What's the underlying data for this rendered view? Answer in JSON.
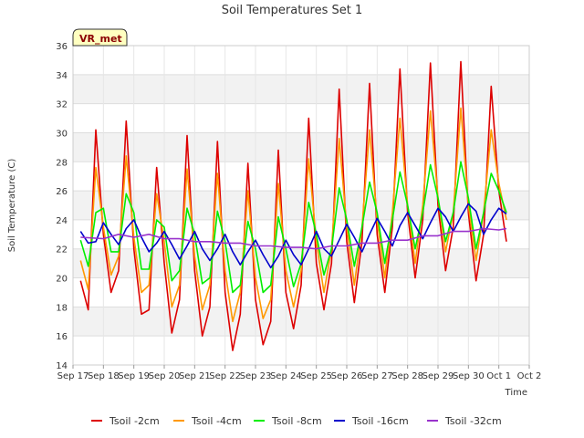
{
  "chart_data": {
    "type": "line",
    "title": "Soil Temperatures Set 1",
    "xlabel": "Time",
    "ylabel": "Soil Temperature (C)",
    "badge": "VR_met",
    "ylim": [
      14,
      36
    ],
    "xlim": [
      "2015-09-17",
      "2015-10-02"
    ],
    "x_ticks": [
      "Sep 17",
      "Sep 18",
      "Sep 19",
      "Sep 20",
      "Sep 21",
      "Sep 22",
      "Sep 23",
      "Sep 24",
      "Sep 25",
      "Sep 26",
      "Sep 27",
      "Sep 28",
      "Sep 29",
      "Sep 30",
      "Oct 1",
      "Oct 2"
    ],
    "y_ticks": [
      14,
      16,
      18,
      20,
      22,
      24,
      26,
      28,
      30,
      32,
      34,
      36
    ],
    "grid": true,
    "legend_position": "bottom",
    "series": [
      {
        "name": "Tsoil -2cm",
        "color": "#dd0000",
        "x": [
          "Sep 17 06:00",
          "Sep 17 12:00",
          "Sep 17 18:00",
          "Sep 18 00:00",
          "Sep 18 06:00",
          "Sep 18 12:00",
          "Sep 18 18:00",
          "Sep 19 00:00",
          "Sep 19 06:00",
          "Sep 19 12:00",
          "Sep 19 18:00",
          "Sep 20 00:00",
          "Sep 20 06:00",
          "Sep 20 12:00",
          "Sep 20 18:00",
          "Sep 21 00:00",
          "Sep 21 06:00",
          "Sep 21 12:00",
          "Sep 21 18:00",
          "Sep 22 00:00",
          "Sep 22 06:00",
          "Sep 22 12:00",
          "Sep 22 18:00",
          "Sep 23 00:00",
          "Sep 23 06:00",
          "Sep 23 12:00",
          "Sep 23 18:00",
          "Sep 24 00:00",
          "Sep 24 06:00",
          "Sep 24 12:00",
          "Sep 24 18:00",
          "Sep 25 00:00",
          "Sep 25 06:00",
          "Sep 25 12:00",
          "Sep 25 18:00",
          "Sep 26 00:00",
          "Sep 26 06:00",
          "Sep 26 12:00",
          "Sep 26 18:00",
          "Sep 27 00:00",
          "Sep 27 06:00",
          "Sep 27 12:00",
          "Sep 27 18:00",
          "Sep 28 00:00",
          "Sep 28 06:00",
          "Sep 28 12:00",
          "Sep 28 18:00",
          "Sep 29 00:00",
          "Sep 29 06:00",
          "Sep 29 12:00",
          "Sep 29 18:00",
          "Sep 30 00:00",
          "Sep 30 06:00",
          "Sep 30 12:00",
          "Sep 30 18:00",
          "Oct 1 00:00",
          "Oct 1 06:00"
        ],
        "values": [
          19.8,
          17.8,
          30.2,
          23.0,
          19.0,
          20.5,
          30.8,
          22.0,
          17.5,
          17.8,
          27.6,
          21.0,
          16.2,
          18.5,
          29.8,
          20.5,
          16.0,
          18.0,
          29.4,
          19.0,
          15.0,
          17.5,
          27.9,
          18.5,
          15.4,
          17.0,
          28.8,
          19.0,
          16.5,
          19.5,
          31.0,
          21.0,
          17.8,
          21.0,
          33.0,
          22.5,
          18.3,
          22.5,
          33.4,
          23.0,
          19.0,
          23.5,
          34.4,
          24.5,
          20.0,
          24.0,
          34.8,
          25.0,
          20.5,
          23.5,
          34.9,
          24.5,
          19.8,
          23.0,
          33.2,
          26.0,
          22.5
        ]
      },
      {
        "name": "Tsoil -4cm",
        "color": "#ff9900",
        "x": [
          "Sep 17 06:00",
          "Sep 17 12:00",
          "Sep 17 18:00",
          "Sep 18 00:00",
          "Sep 18 06:00",
          "Sep 18 12:00",
          "Sep 18 18:00",
          "Sep 19 00:00",
          "Sep 19 06:00",
          "Sep 19 12:00",
          "Sep 19 18:00",
          "Sep 20 00:00",
          "Sep 20 06:00",
          "Sep 20 12:00",
          "Sep 20 18:00",
          "Sep 21 00:00",
          "Sep 21 06:00",
          "Sep 21 12:00",
          "Sep 21 18:00",
          "Sep 22 00:00",
          "Sep 22 06:00",
          "Sep 22 12:00",
          "Sep 22 18:00",
          "Sep 23 00:00",
          "Sep 23 06:00",
          "Sep 23 12:00",
          "Sep 23 18:00",
          "Sep 24 00:00",
          "Sep 24 06:00",
          "Sep 24 12:00",
          "Sep 24 18:00",
          "Sep 25 00:00",
          "Sep 25 06:00",
          "Sep 25 12:00",
          "Sep 25 18:00",
          "Sep 26 00:00",
          "Sep 26 06:00",
          "Sep 26 12:00",
          "Sep 26 18:00",
          "Sep 27 00:00",
          "Sep 27 06:00",
          "Sep 27 12:00",
          "Sep 27 18:00",
          "Sep 28 00:00",
          "Sep 28 06:00",
          "Sep 28 12:00",
          "Sep 28 18:00",
          "Sep 29 00:00",
          "Sep 29 06:00",
          "Sep 29 12:00",
          "Sep 29 18:00",
          "Sep 30 00:00",
          "Sep 30 06:00",
          "Sep 30 12:00",
          "Sep 30 18:00",
          "Oct 1 00:00",
          "Oct 1 06:00"
        ],
        "values": [
          21.2,
          19.2,
          27.6,
          23.5,
          20.2,
          21.5,
          28.4,
          22.8,
          19.0,
          19.5,
          25.8,
          22.5,
          18.0,
          19.5,
          27.5,
          21.5,
          17.8,
          19.5,
          27.2,
          20.5,
          17.0,
          19.0,
          26.0,
          20.0,
          17.2,
          18.5,
          26.5,
          20.5,
          18.0,
          20.5,
          28.2,
          22.5,
          19.0,
          22.0,
          29.6,
          23.5,
          19.5,
          23.5,
          30.2,
          24.0,
          20.0,
          24.5,
          31.0,
          25.0,
          21.0,
          25.0,
          31.5,
          25.5,
          21.8,
          24.5,
          31.7,
          25.0,
          21.2,
          24.5,
          30.2,
          26.5,
          24.0
        ]
      },
      {
        "name": "Tsoil -8cm",
        "color": "#00ee00",
        "x": [
          "Sep 17 06:00",
          "Sep 17 12:00",
          "Sep 17 18:00",
          "Sep 18 00:00",
          "Sep 18 06:00",
          "Sep 18 12:00",
          "Sep 18 18:00",
          "Sep 19 00:00",
          "Sep 19 06:00",
          "Sep 19 12:00",
          "Sep 19 18:00",
          "Sep 20 00:00",
          "Sep 20 06:00",
          "Sep 20 12:00",
          "Sep 20 18:00",
          "Sep 21 00:00",
          "Sep 21 06:00",
          "Sep 21 12:00",
          "Sep 21 18:00",
          "Sep 22 00:00",
          "Sep 22 06:00",
          "Sep 22 12:00",
          "Sep 22 18:00",
          "Sep 23 00:00",
          "Sep 23 06:00",
          "Sep 23 12:00",
          "Sep 23 18:00",
          "Sep 24 00:00",
          "Sep 24 06:00",
          "Sep 24 12:00",
          "Sep 24 18:00",
          "Sep 25 00:00",
          "Sep 25 06:00",
          "Sep 25 12:00",
          "Sep 25 18:00",
          "Sep 26 00:00",
          "Sep 26 06:00",
          "Sep 26 12:00",
          "Sep 26 18:00",
          "Sep 27 00:00",
          "Sep 27 06:00",
          "Sep 27 12:00",
          "Sep 27 18:00",
          "Sep 28 00:00",
          "Sep 28 06:00",
          "Sep 28 12:00",
          "Sep 28 18:00",
          "Sep 29 00:00",
          "Sep 29 06:00",
          "Sep 29 12:00",
          "Sep 29 18:00",
          "Sep 30 00:00",
          "Sep 30 06:00",
          "Sep 30 12:00",
          "Sep 30 18:00",
          "Oct 1 00:00",
          "Oct 1 06:00"
        ],
        "values": [
          22.6,
          20.8,
          24.5,
          24.8,
          21.8,
          21.8,
          25.8,
          24.5,
          20.6,
          20.6,
          24.0,
          23.5,
          19.8,
          20.5,
          24.8,
          23.0,
          19.6,
          20.0,
          24.6,
          22.5,
          19.0,
          19.5,
          23.9,
          22.0,
          19.0,
          19.5,
          24.2,
          22.0,
          19.4,
          21.0,
          25.2,
          23.0,
          20.2,
          22.0,
          26.2,
          24.0,
          20.8,
          23.5,
          26.6,
          24.5,
          21.0,
          24.0,
          27.3,
          25.0,
          22.0,
          24.5,
          27.8,
          25.5,
          22.5,
          24.5,
          28.0,
          25.5,
          22.0,
          24.5,
          27.2,
          26.0,
          24.5
        ]
      },
      {
        "name": "Tsoil -16cm",
        "color": "#0000cc",
        "x": [
          "Sep 17 06:00",
          "Sep 17 12:00",
          "Sep 17 18:00",
          "Sep 18 00:00",
          "Sep 18 06:00",
          "Sep 18 12:00",
          "Sep 18 18:00",
          "Sep 19 00:00",
          "Sep 19 06:00",
          "Sep 19 12:00",
          "Sep 19 18:00",
          "Sep 20 00:00",
          "Sep 20 06:00",
          "Sep 20 12:00",
          "Sep 20 18:00",
          "Sep 21 00:00",
          "Sep 21 06:00",
          "Sep 21 12:00",
          "Sep 21 18:00",
          "Sep 22 00:00",
          "Sep 22 06:00",
          "Sep 22 12:00",
          "Sep 22 18:00",
          "Sep 23 00:00",
          "Sep 23 06:00",
          "Sep 23 12:00",
          "Sep 23 18:00",
          "Sep 24 00:00",
          "Sep 24 06:00",
          "Sep 24 12:00",
          "Sep 24 18:00",
          "Sep 25 00:00",
          "Sep 25 06:00",
          "Sep 25 12:00",
          "Sep 25 18:00",
          "Sep 26 00:00",
          "Sep 26 06:00",
          "Sep 26 12:00",
          "Sep 26 18:00",
          "Sep 27 00:00",
          "Sep 27 06:00",
          "Sep 27 12:00",
          "Sep 27 18:00",
          "Sep 28 00:00",
          "Sep 28 06:00",
          "Sep 28 12:00",
          "Sep 28 18:00",
          "Sep 29 00:00",
          "Sep 29 06:00",
          "Sep 29 12:00",
          "Sep 29 18:00",
          "Sep 30 00:00",
          "Sep 30 06:00",
          "Sep 30 12:00",
          "Sep 30 18:00",
          "Oct 1 00:00",
          "Oct 1 06:00"
        ],
        "values": [
          23.2,
          22.4,
          22.5,
          23.8,
          23.0,
          22.3,
          23.4,
          24.0,
          22.8,
          21.8,
          22.4,
          23.2,
          22.3,
          21.3,
          22.2,
          23.2,
          22.0,
          21.2,
          22.0,
          23.0,
          21.8,
          20.9,
          21.8,
          22.6,
          21.6,
          20.7,
          21.5,
          22.6,
          21.6,
          20.9,
          22.0,
          23.2,
          22.0,
          21.5,
          22.6,
          23.7,
          22.8,
          21.8,
          23.0,
          24.1,
          23.2,
          22.2,
          23.6,
          24.5,
          23.6,
          22.7,
          23.8,
          24.8,
          24.2,
          23.2,
          24.2,
          25.1,
          24.6,
          23.0,
          24.0,
          24.8,
          24.4
        ]
      },
      {
        "name": "Tsoil -32cm",
        "color": "#9933cc",
        "x": [
          "Sep 17 06:00",
          "Sep 18 00:00",
          "Sep 18 12:00",
          "Sep 19 00:00",
          "Sep 19 12:00",
          "Sep 20 00:00",
          "Sep 20 12:00",
          "Sep 21 00:00",
          "Sep 21 12:00",
          "Sep 22 00:00",
          "Sep 22 12:00",
          "Sep 23 00:00",
          "Sep 23 12:00",
          "Sep 24 00:00",
          "Sep 24 12:00",
          "Sep 25 00:00",
          "Sep 25 12:00",
          "Sep 26 00:00",
          "Sep 26 12:00",
          "Sep 27 00:00",
          "Sep 27 12:00",
          "Sep 28 00:00",
          "Sep 28 12:00",
          "Sep 29 00:00",
          "Sep 29 12:00",
          "Sep 30 00:00",
          "Sep 30 12:00",
          "Oct 1 00:00",
          "Oct 1 06:00"
        ],
        "values": [
          22.8,
          22.7,
          23.0,
          22.8,
          23.0,
          22.7,
          22.7,
          22.5,
          22.5,
          22.4,
          22.4,
          22.2,
          22.2,
          22.1,
          22.1,
          22.0,
          22.2,
          22.2,
          22.4,
          22.4,
          22.6,
          22.6,
          22.9,
          22.9,
          23.2,
          23.2,
          23.4,
          23.3,
          23.4
        ]
      }
    ]
  }
}
